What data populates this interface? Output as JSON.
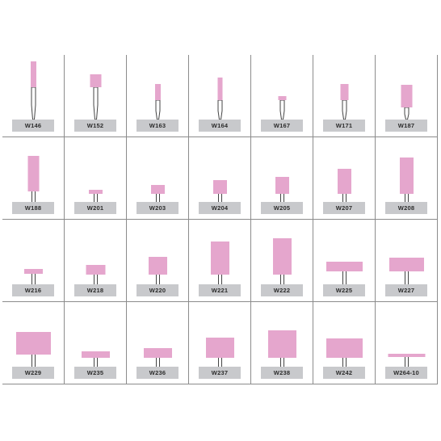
{
  "colors": {
    "stone": "#e5a6cd",
    "stone_edge": "#c985ad",
    "shank": "#444444",
    "label_bg": "#c8c9cc",
    "grid": "#8c8c8c"
  },
  "products": [
    {
      "label": "W146",
      "icon": "long-shank-point-icon"
    },
    {
      "label": "W152",
      "icon": "long-shank-point-icon"
    },
    {
      "label": "W163",
      "icon": "long-shank-point-icon"
    },
    {
      "label": "W164",
      "icon": "long-shank-point-icon"
    },
    {
      "label": "W167",
      "icon": "long-shank-point-icon"
    },
    {
      "label": "W171",
      "icon": "long-shank-point-icon"
    },
    {
      "label": "W187",
      "icon": "long-shank-point-icon"
    },
    {
      "label": "W188",
      "icon": "cylinder-point-icon"
    },
    {
      "label": "W201",
      "icon": "cylinder-point-icon"
    },
    {
      "label": "W203",
      "icon": "cylinder-point-icon"
    },
    {
      "label": "W204",
      "icon": "cylinder-point-icon"
    },
    {
      "label": "W205",
      "icon": "cylinder-point-icon"
    },
    {
      "label": "W207",
      "icon": "cylinder-point-icon"
    },
    {
      "label": "W208",
      "icon": "cylinder-point-icon"
    },
    {
      "label": "W216",
      "icon": "cylinder-point-icon"
    },
    {
      "label": "W218",
      "icon": "cylinder-point-icon"
    },
    {
      "label": "W220",
      "icon": "cylinder-point-icon"
    },
    {
      "label": "W221",
      "icon": "cylinder-point-icon"
    },
    {
      "label": "W222",
      "icon": "cylinder-point-icon"
    },
    {
      "label": "W225",
      "icon": "cylinder-point-icon"
    },
    {
      "label": "W227",
      "icon": "cylinder-point-icon"
    },
    {
      "label": "W229",
      "icon": "cylinder-point-icon"
    },
    {
      "label": "W235",
      "icon": "cylinder-point-icon"
    },
    {
      "label": "W236",
      "icon": "cylinder-point-icon"
    },
    {
      "label": "W237",
      "icon": "cylinder-point-icon"
    },
    {
      "label": "W238",
      "icon": "cylinder-point-icon"
    },
    {
      "label": "W242",
      "icon": "cylinder-point-icon"
    },
    {
      "label": "W264-10",
      "icon": "cylinder-point-icon"
    }
  ]
}
